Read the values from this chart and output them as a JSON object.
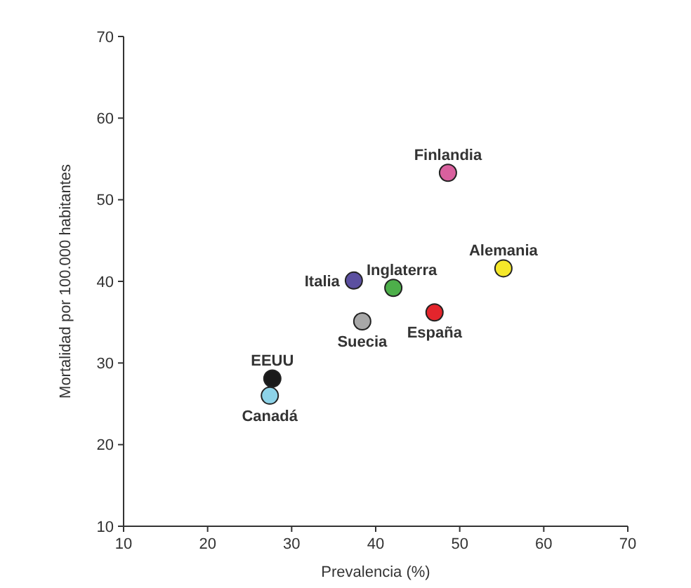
{
  "chart_data": {
    "type": "scatter",
    "xlabel": "Prevalencia (%)",
    "ylabel": "Mortalidad por 100.000 habitantes",
    "xlim": [
      10,
      70
    ],
    "ylim": [
      10,
      70
    ],
    "xticks": [
      10,
      20,
      30,
      40,
      50,
      60,
      70
    ],
    "yticks": [
      10,
      20,
      30,
      40,
      50,
      60,
      70
    ],
    "grid": false,
    "marker": "circle",
    "series": [
      {
        "name": "Finlandia",
        "color": "#d9609e",
        "x": [
          48.6
        ],
        "values": [
          53.3
        ]
      },
      {
        "name": "Alemania",
        "color": "#f5e82a",
        "x": [
          55.2
        ],
        "values": [
          41.6
        ]
      },
      {
        "name": "Italia",
        "color": "#5b4fa0",
        "x": [
          37.4
        ],
        "values": [
          40.1
        ]
      },
      {
        "name": "Inglaterra",
        "color": "#4daf4a",
        "x": [
          42.1
        ],
        "values": [
          39.2
        ]
      },
      {
        "name": "Suecia",
        "color": "#a8a8a8",
        "x": [
          38.4
        ],
        "values": [
          35.1
        ]
      },
      {
        "name": "España",
        "color": "#e4252c",
        "x": [
          47.0
        ],
        "values": [
          36.2
        ]
      },
      {
        "name": "EEUU",
        "color": "#1a1a1a",
        "x": [
          27.7
        ],
        "values": [
          28.1
        ]
      },
      {
        "name": "Canadá",
        "color": "#8dd3e8",
        "x": [
          27.4
        ],
        "values": [
          26.0
        ]
      }
    ]
  }
}
